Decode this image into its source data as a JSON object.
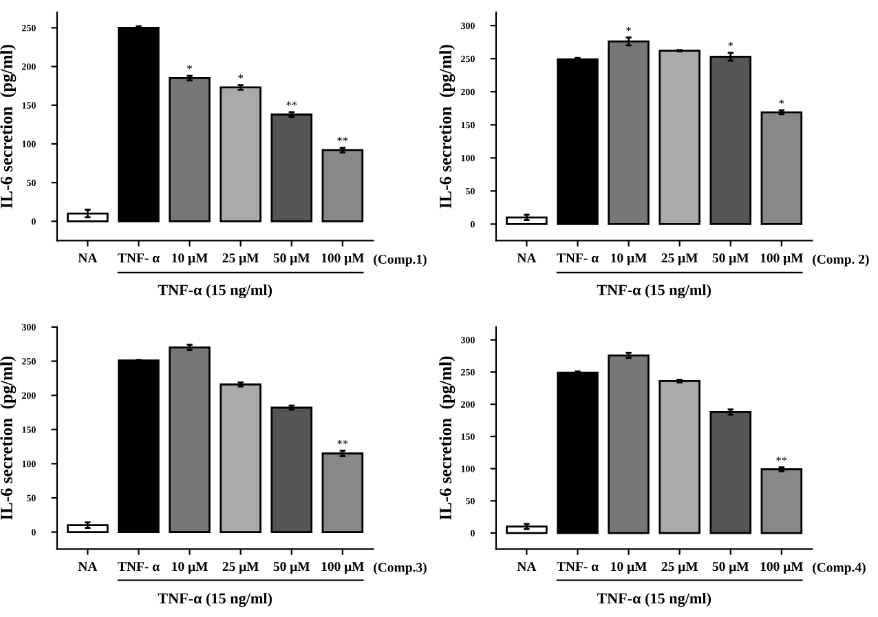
{
  "chart_data": [
    {
      "type": "bar",
      "categories": [
        "NA",
        "TNF- α",
        "10 μM",
        "25 μM",
        "50 μM",
        "100 μM"
      ],
      "values": [
        10,
        250,
        185,
        173,
        138,
        92
      ],
      "errors": [
        5,
        2,
        3,
        3,
        3,
        3
      ],
      "colors": [
        "#ffffff",
        "#000000",
        "#777777",
        "#aaaaaa",
        "#555555",
        "#888888"
      ],
      "ylabel": "IL-6 secretion  (pg/ml)",
      "xlabel": "TNF-α (15 ng/ml)",
      "ylim": [
        -25,
        270
      ],
      "yticks": [
        0,
        50,
        100,
        150,
        200,
        250
      ],
      "grid": false,
      "annotations": [
        "(Comp.1)",
        {
          "text": "*",
          "x": "10 μM",
          "y": 189
        },
        {
          "text": "*",
          "x": "25 μM",
          "y": 177
        },
        {
          "text": "**",
          "x": "50 μM",
          "y": 142
        },
        {
          "text": "**",
          "x": "100 μM",
          "y": 96
        }
      ]
    },
    {
      "type": "bar",
      "categories": [
        "NA",
        "TNF- α",
        "10 μM",
        "25 μM",
        "50 μM",
        "100 μM"
      ],
      "values": [
        10,
        249,
        276,
        262,
        253,
        169
      ],
      "errors": [
        4,
        2,
        6,
        1,
        6,
        3
      ],
      "colors": [
        "#ffffff",
        "#000000",
        "#777777",
        "#aaaaaa",
        "#555555",
        "#888888"
      ],
      "ylabel": "IL-6 secretion  (pg/ml)",
      "xlabel": "TNF-α (15 ng/ml)",
      "ylim": [
        -25,
        320
      ],
      "yticks": [
        0,
        50,
        100,
        150,
        200,
        250,
        300
      ],
      "grid": false,
      "annotations": [
        "(Comp. 2)",
        {
          "text": "*",
          "x": "10 μM",
          "y": 283
        },
        {
          "text": "*",
          "x": "50 μM",
          "y": 260
        },
        {
          "text": "*",
          "x": "100 μM",
          "y": 173
        }
      ]
    },
    {
      "type": "bar",
      "categories": [
        "NA",
        "TNF- α",
        "10 μM",
        "25 μM",
        "50 μM",
        "100 μM"
      ],
      "values": [
        10,
        251,
        270,
        216,
        182,
        115
      ],
      "errors": [
        4,
        1,
        4,
        3,
        3,
        4
      ],
      "colors": [
        "#ffffff",
        "#000000",
        "#777777",
        "#aaaaaa",
        "#555555",
        "#888888"
      ],
      "ylabel": "IL-6 secretion  (pg/ml)",
      "xlabel": "TNF-α (15 ng/ml)",
      "ylim": [
        -25,
        300
      ],
      "yticks": [
        0,
        50,
        100,
        150,
        200,
        250,
        300
      ],
      "grid": false,
      "annotations": [
        "(Comp.3)",
        {
          "text": "**",
          "x": "100 μM",
          "y": 120
        }
      ]
    },
    {
      "type": "bar",
      "categories": [
        "NA",
        "TNF- α",
        "10 μM",
        "25 μM",
        "50 μM",
        "100 μM"
      ],
      "values": [
        10,
        249,
        276,
        236,
        188,
        99
      ],
      "errors": [
        4,
        2,
        4,
        2,
        4,
        3
      ],
      "colors": [
        "#ffffff",
        "#000000",
        "#777777",
        "#aaaaaa",
        "#555555",
        "#888888"
      ],
      "ylabel": "IL-6 secretion  (pg/ml)",
      "xlabel": "TNF-α (15 ng/ml)",
      "ylim": [
        -25,
        320
      ],
      "yticks": [
        0,
        50,
        100,
        150,
        200,
        250,
        300
      ],
      "grid": false,
      "annotations": [
        "(Comp.4)",
        {
          "text": "**",
          "x": "100 μM",
          "y": 103
        }
      ]
    }
  ]
}
